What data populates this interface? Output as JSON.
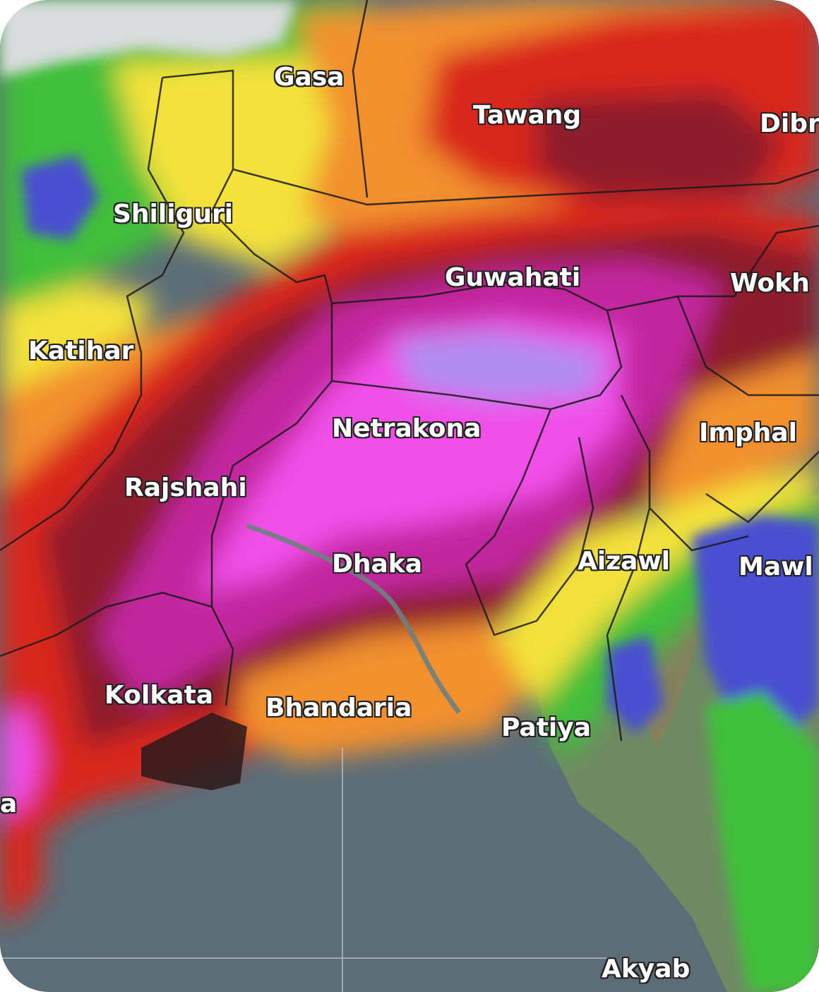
{
  "map": {
    "places": {
      "gasa": "Gasa",
      "tawang": "Tawang",
      "dibr": "Dibr",
      "shiliguri": "Shiliguri",
      "guwahati": "Guwahati",
      "wokh": "Wokh",
      "katihar": "Katihar",
      "netrakona": "Netrakona",
      "imphal": "Imphal",
      "rajshahi": "Rajshahi",
      "dhaka": "Dhaka",
      "aizawl": "Aizawl",
      "mawl": "Mawl",
      "kolkata": "Kolkata",
      "bhandaria": "Bhandaria",
      "patiya": "Patiya",
      "a": "a",
      "akyab": "Akyab"
    },
    "colors": {
      "sea": "#5c6d78",
      "terrain": "#6f8a62",
      "snow": "#d8dcdc",
      "green": "#3fbf3a",
      "yellow": "#f3e23a",
      "orange": "#f2902e",
      "red": "#d9281f",
      "dark_red": "#8e1b2a",
      "magenta": "#c2289f",
      "pink": "#f050e8",
      "blue": "#4a4fd0"
    }
  }
}
